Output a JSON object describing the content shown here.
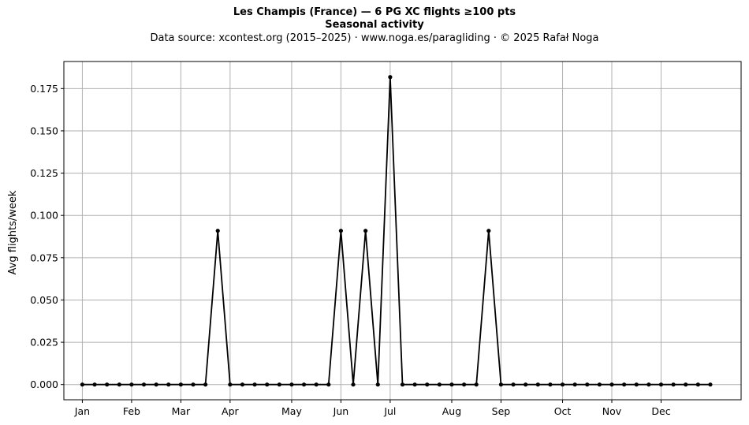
{
  "header": {
    "title": "Les Champis (France)  —  6 PG XC flights ≥100 pts",
    "subtitle": "Seasonal activity",
    "source": "Data source: xcontest.org (2015–2025)  ·  www.noga.es/paragliding  ·  © 2025 Rafał Noga"
  },
  "chart_data": {
    "type": "line",
    "title": "Les Champis (France)  —  6 PG XC flights ≥100 pts",
    "subtitle": "Seasonal activity",
    "xlabel": "",
    "ylabel": "Avg flights/week",
    "x_unit": "week of year",
    "xlim": [
      -1.5,
      53.5
    ],
    "ylim": [
      -0.009,
      0.191
    ],
    "grid": true,
    "month_ticks": [
      {
        "label": "Jan",
        "week": 0
      },
      {
        "label": "Feb",
        "week": 4
      },
      {
        "label": "Mar",
        "week": 8
      },
      {
        "label": "Apr",
        "week": 12
      },
      {
        "label": "May",
        "week": 17
      },
      {
        "label": "Jun",
        "week": 21
      },
      {
        "label": "Jul",
        "week": 25
      },
      {
        "label": "Aug",
        "week": 30
      },
      {
        "label": "Sep",
        "week": 34
      },
      {
        "label": "Oct",
        "week": 39
      },
      {
        "label": "Nov",
        "week": 43
      },
      {
        "label": "Dec",
        "week": 47
      }
    ],
    "y_ticks": [
      0.0,
      0.025,
      0.05,
      0.075,
      0.1,
      0.125,
      0.15,
      0.175
    ],
    "y_tick_labels": [
      "0.000",
      "0.025",
      "0.050",
      "0.075",
      "0.100",
      "0.125",
      "0.150",
      "0.175"
    ],
    "series": [
      {
        "color": "#000000",
        "x": [
          0,
          1,
          2,
          3,
          4,
          5,
          6,
          7,
          8,
          9,
          10,
          11,
          12,
          13,
          14,
          15,
          16,
          17,
          18,
          19,
          20,
          21,
          22,
          23,
          24,
          25,
          26,
          27,
          28,
          29,
          30,
          31,
          32,
          33,
          34,
          35,
          36,
          37,
          38,
          39,
          40,
          41,
          42,
          43,
          44,
          45,
          46,
          47,
          48,
          49,
          50,
          51
        ],
        "y": [
          0,
          0,
          0,
          0,
          0,
          0,
          0,
          0,
          0,
          0,
          0,
          0.0909,
          0,
          0,
          0,
          0,
          0,
          0,
          0,
          0,
          0,
          0.0909,
          0,
          0.0909,
          0,
          0.1818,
          0,
          0,
          0,
          0,
          0,
          0,
          0,
          0.0909,
          0,
          0,
          0,
          0,
          0,
          0,
          0,
          0,
          0,
          0,
          0,
          0,
          0,
          0,
          0,
          0,
          0,
          0
        ]
      }
    ]
  }
}
